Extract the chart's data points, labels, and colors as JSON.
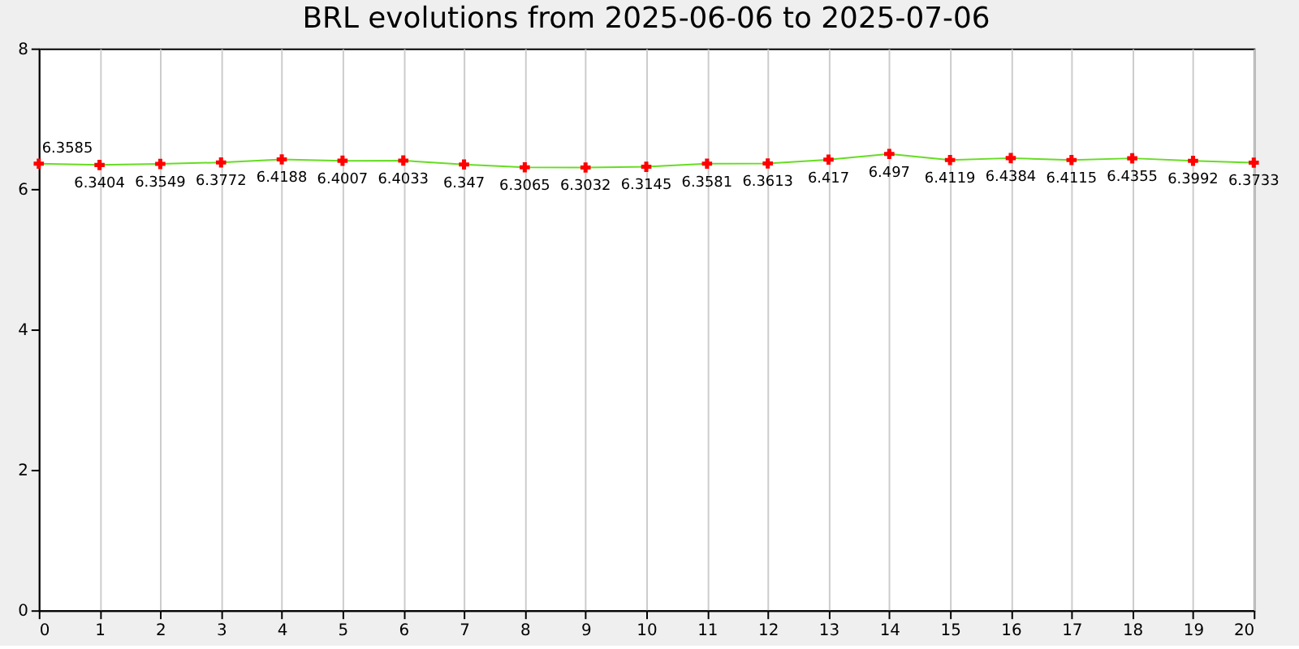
{
  "chart_data": {
    "type": "line",
    "title": "BRL evolutions from 2025-06-06 to 2025-07-06",
    "x": [
      0,
      1,
      2,
      3,
      4,
      5,
      6,
      7,
      8,
      9,
      10,
      11,
      12,
      13,
      14,
      15,
      16,
      17,
      18,
      19,
      20
    ],
    "series": [
      {
        "color": "#66dd22",
        "values": [
          6.3585,
          6.3404,
          6.3549,
          6.3772,
          6.4188,
          6.4007,
          6.4033,
          6.347,
          6.3065,
          6.3032,
          6.3145,
          6.3581,
          6.3613,
          6.417,
          6.497,
          6.4119,
          6.4384,
          6.4115,
          6.4355,
          6.3992,
          6.3733
        ]
      }
    ],
    "xlim": [
      0,
      20
    ],
    "xticks": [
      0,
      1,
      2,
      3,
      4,
      5,
      6,
      7,
      8,
      9,
      10,
      11,
      12,
      13,
      14,
      15,
      16,
      17,
      18,
      19,
      20
    ],
    "ylim": [
      0,
      8
    ],
    "yticks": [
      0,
      2,
      4,
      6,
      8
    ],
    "grid": "x",
    "marker": "cross",
    "data_labels": true
  }
}
